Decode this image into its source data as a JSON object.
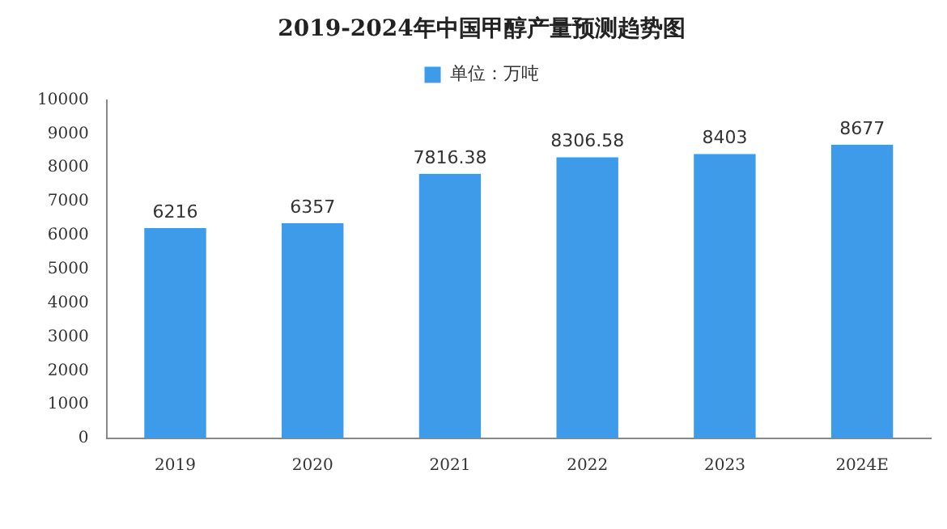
{
  "chart_data": {
    "type": "bar",
    "title": "2019-2024年中国甲醇产量预测趋势图",
    "categories": [
      "2019",
      "2020",
      "2021",
      "2022",
      "2023",
      "2024E"
    ],
    "series": [
      {
        "name": "单位：万吨",
        "color": "#3d9be9",
        "values": [
          6216,
          6357,
          7816.38,
          8306.58,
          8403,
          8677
        ]
      }
    ],
    "ylim": [
      0,
      10000
    ],
    "yticks": [
      0,
      1000,
      2000,
      3000,
      4000,
      5000,
      6000,
      7000,
      8000,
      9000,
      10000
    ],
    "grid": false,
    "legend": "top",
    "data_labels": true
  }
}
